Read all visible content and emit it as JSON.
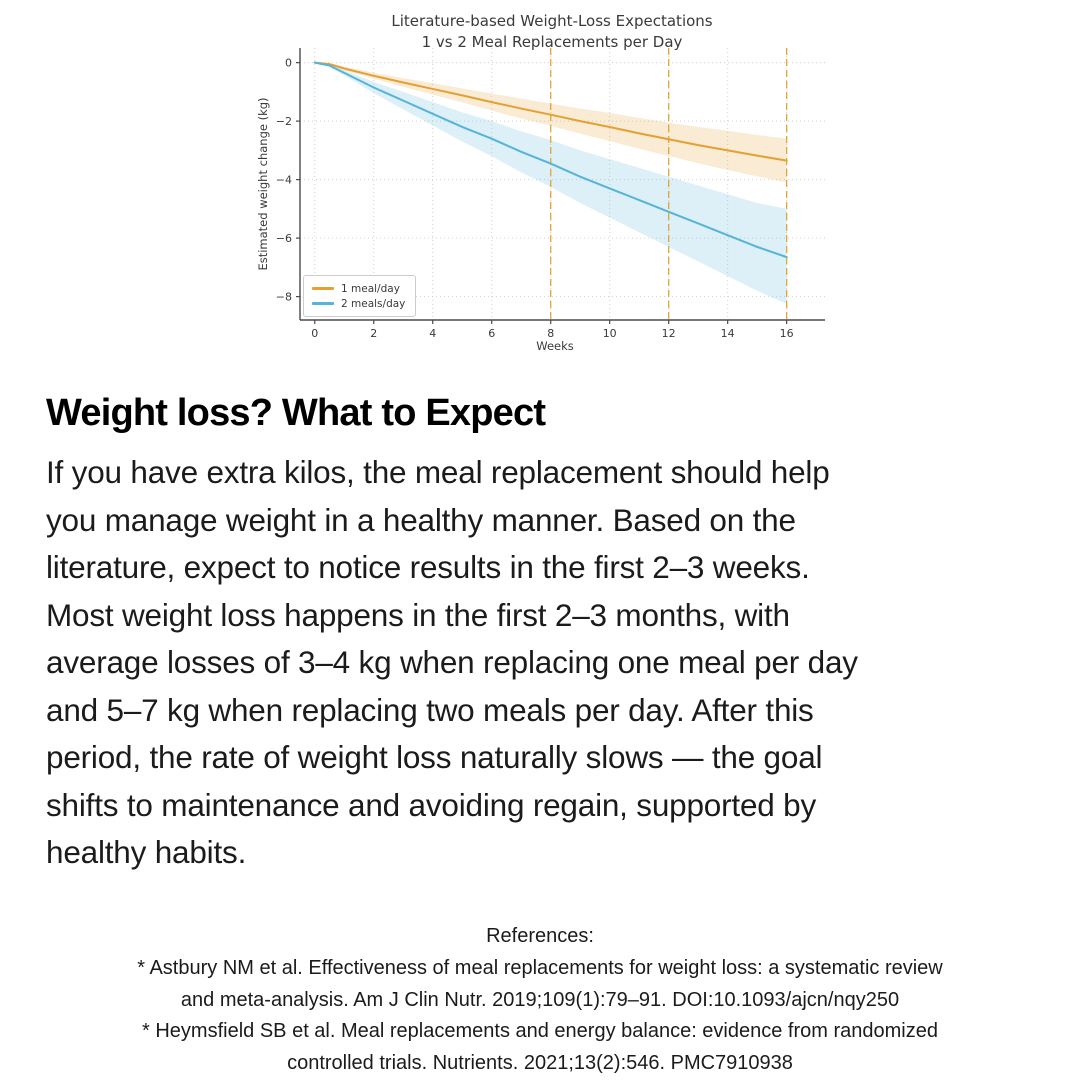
{
  "chart_data": {
    "type": "line",
    "title": "Literature-based Weight-Loss Expectations",
    "subtitle": "1 vs 2 Meal Replacements per Day",
    "xlabel": "Weeks",
    "ylabel": "Estimated weight change (kg)",
    "xlim": [
      -0.5,
      17.3
    ],
    "ylim": [
      -8.8,
      0.5
    ],
    "xticks": [
      0,
      2,
      4,
      6,
      8,
      10,
      12,
      14,
      16
    ],
    "yticks": [
      0,
      -2,
      -4,
      -6,
      -8
    ],
    "grid": true,
    "grid_color": "#d0d0d0",
    "axis_color": "#4a4a4a",
    "text_color": "#3a3a3a",
    "legend_position": "lower left",
    "vlines": {
      "x": [
        8,
        12,
        16
      ],
      "color": "#e1a636",
      "style": "dashed"
    },
    "x": [
      0,
      0.5,
      1,
      2,
      3,
      4,
      5,
      6,
      7,
      8,
      9,
      10,
      11,
      12,
      13,
      14,
      15,
      16
    ],
    "series": [
      {
        "name": "1 meal/day",
        "color": "#e4a033",
        "band_color": "rgba(232,163,60,0.22)",
        "values": [
          0,
          -0.05,
          -0.2,
          -0.45,
          -0.68,
          -0.9,
          -1.12,
          -1.35,
          -1.57,
          -1.78,
          -2.0,
          -2.2,
          -2.42,
          -2.62,
          -2.82,
          -3.0,
          -3.18,
          -3.35
        ],
        "upper": [
          0,
          -0.02,
          -0.13,
          -0.35,
          -0.53,
          -0.7,
          -0.88,
          -1.06,
          -1.23,
          -1.4,
          -1.57,
          -1.72,
          -1.89,
          -2.05,
          -2.2,
          -2.33,
          -2.47,
          -2.6
        ],
        "lower": [
          0,
          -0.08,
          -0.27,
          -0.55,
          -0.83,
          -1.1,
          -1.36,
          -1.64,
          -1.91,
          -2.16,
          -2.43,
          -2.68,
          -2.95,
          -3.19,
          -3.44,
          -3.67,
          -3.89,
          -4.1
        ]
      },
      {
        "name": "2 meals/day",
        "color": "#54b4d9",
        "band_color": "rgba(100,181,220,0.22)",
        "values": [
          0,
          -0.1,
          -0.35,
          -0.85,
          -1.3,
          -1.75,
          -2.2,
          -2.6,
          -3.05,
          -3.45,
          -3.9,
          -4.3,
          -4.7,
          -5.1,
          -5.5,
          -5.9,
          -6.3,
          -6.65
        ],
        "upper": [
          0,
          -0.06,
          -0.27,
          -0.66,
          -1.0,
          -1.35,
          -1.7,
          -2.0,
          -2.35,
          -2.65,
          -3.0,
          -3.3,
          -3.6,
          -3.9,
          -4.2,
          -4.5,
          -4.8,
          -5.0
        ],
        "lower": [
          0,
          -0.14,
          -0.43,
          -1.04,
          -1.6,
          -2.15,
          -2.7,
          -3.2,
          -3.75,
          -4.25,
          -4.8,
          -5.3,
          -5.8,
          -6.3,
          -6.8,
          -7.3,
          -7.8,
          -8.25
        ]
      }
    ]
  },
  "article": {
    "heading": "Weight loss? What to Expect",
    "body_lines": [
      "If you have extra kilos, the meal replacement should help",
      "you manage weight in a healthy manner. Based on the",
      "literature, expect to notice results in the first 2–3 weeks.",
      "Most weight loss happens in the first 2–3 months, with",
      "average losses of 3–4 kg when replacing one meal per day",
      "and 5–7 kg when replacing two meals per day. After this",
      "period, the rate of weight loss naturally slows — the goal",
      "shifts to maintenance and avoiding regain, supported by",
      "healthy habits."
    ]
  },
  "references": {
    "label": "References:",
    "lines": [
      "* Astbury NM et al. Effectiveness of meal replacements for weight loss: a systematic review",
      "and meta-analysis. Am J Clin Nutr. 2019;109(1):79–91. DOI:10.1093/ajcn/nqy250",
      "* Heymsfield SB et al. Meal replacements and energy balance: evidence from randomized",
      "controlled trials. Nutrients. 2021;13(2):546. PMC7910938"
    ]
  }
}
